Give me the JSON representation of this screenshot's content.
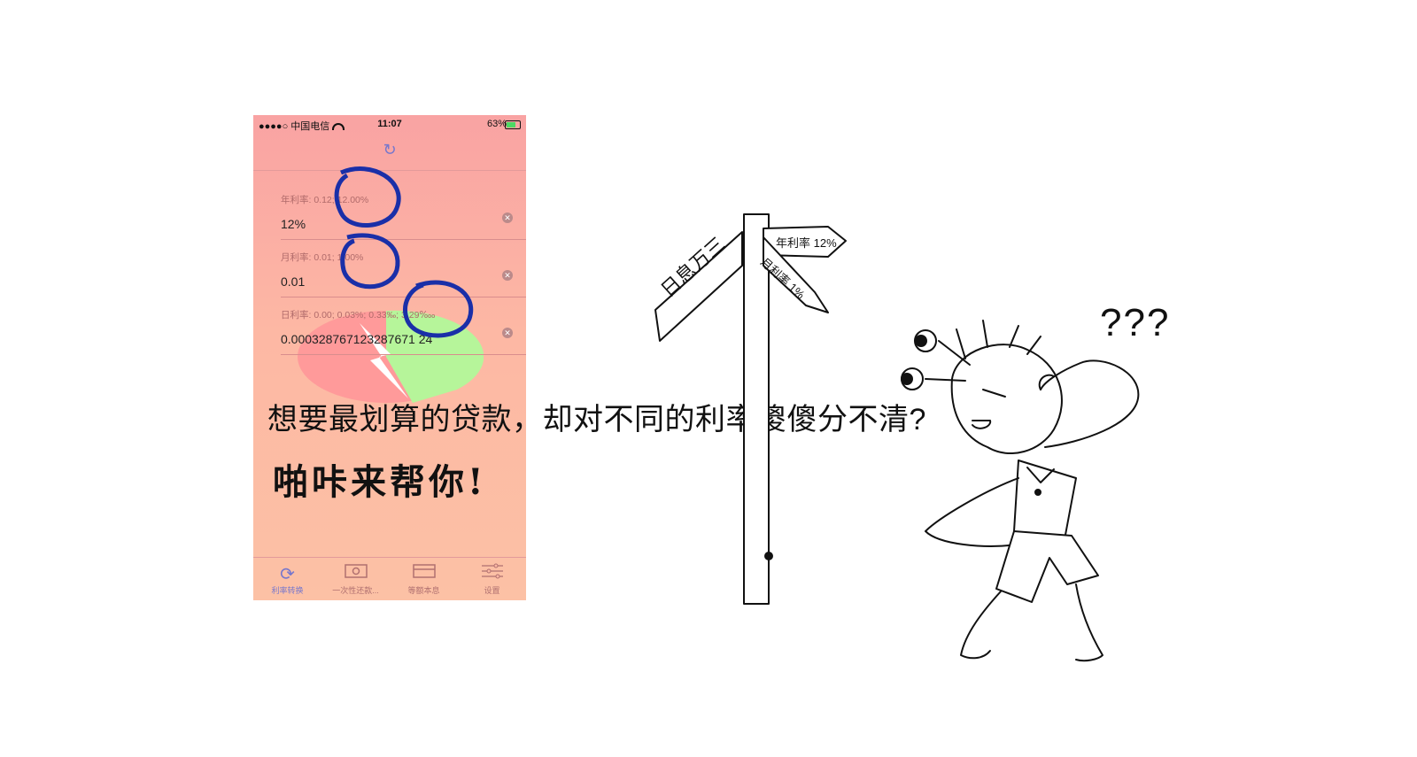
{
  "status_bar": {
    "carrier": "●●●●○ 中国电信",
    "time": "11:07",
    "battery": "63%"
  },
  "fields": [
    {
      "hint": "年利率: 0.12; 12.00%",
      "value": "12%"
    },
    {
      "hint": "月利率: 0.01; 1.00%",
      "value": "0.01"
    },
    {
      "hint": "日利率: 0.00; 0.03%; 0.33‰; 3.29‱",
      "value": "0.000328767123287671 24"
    }
  ],
  "tabs": [
    {
      "label": "利率转换",
      "icon": "refresh-icon"
    },
    {
      "label": "一次性还款...",
      "icon": "cash-icon"
    },
    {
      "label": "等额本息",
      "icon": "card-icon"
    },
    {
      "label": "设置",
      "icon": "sliders-icon"
    }
  ],
  "headline": "想要最划算的贷款，却对不同的利率傻傻分不清?",
  "slogan": "啪咔来帮你!",
  "signs": {
    "left": "日息万三",
    "right_top": "年利率 12%",
    "right_bottom": "月利率 1%"
  },
  "question": "???",
  "colors": {
    "pie_red": "#ff9a9a",
    "pie_green": "#b6f59a",
    "circle_blue": "#1a2fa8",
    "accent": "#7777cc"
  }
}
